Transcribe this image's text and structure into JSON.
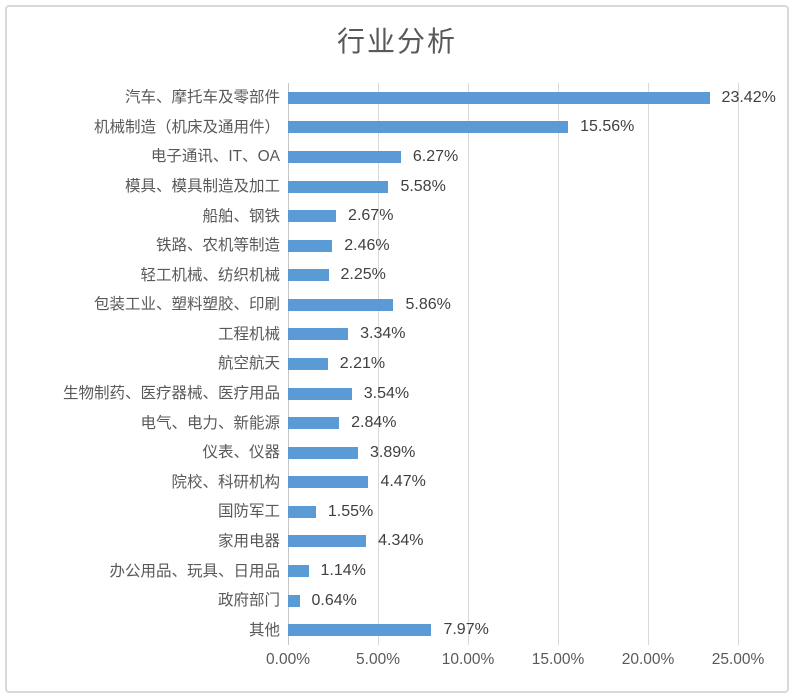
{
  "chart_data": {
    "type": "bar",
    "orientation": "horizontal",
    "title": "行业分析",
    "categories": [
      "汽车、摩托车及零部件",
      "机械制造（机床及通用件）",
      "电子通讯、IT、OA",
      "模具、模具制造及加工",
      "船舶、钢铁",
      "铁路、农机等制造",
      "轻工机械、纺织机械",
      "包装工业、塑料塑胶、印刷",
      "工程机械",
      "航空航天",
      "生物制药、医疗器械、医疗用品",
      "电气、电力、新能源",
      "仪表、仪器",
      "院校、科研机构",
      "国防军工",
      "家用电器",
      "办公用品、玩具、日用品",
      "政府部门",
      "其他"
    ],
    "values": [
      23.42,
      15.56,
      6.27,
      5.58,
      2.67,
      2.46,
      2.25,
      5.86,
      3.34,
      2.21,
      3.54,
      2.84,
      3.89,
      4.47,
      1.55,
      4.34,
      1.14,
      0.64,
      7.97
    ],
    "data_labels": [
      "23.42%",
      "15.56%",
      "6.27%",
      "5.58%",
      "2.67%",
      "2.46%",
      "2.25%",
      "5.86%",
      "3.34%",
      "2.21%",
      "3.54%",
      "2.84%",
      "3.89%",
      "4.47%",
      "1.55%",
      "4.34%",
      "1.14%",
      "0.64%",
      "7.97%"
    ],
    "x_ticks": [
      "0.00%",
      "5.00%",
      "10.00%",
      "15.00%",
      "20.00%",
      "25.00%"
    ],
    "xlim": [
      0,
      25
    ],
    "grid": "vertical",
    "legend": "none",
    "bar_color": "#5B9BD5",
    "gridline_color": "#D9D9D9",
    "axis_line_color": "#C6C6C6",
    "title_color": "#595959",
    "category_label_color": "#595959",
    "value_label_color": "#404040",
    "frame_border_color": "#D9D9D9"
  }
}
